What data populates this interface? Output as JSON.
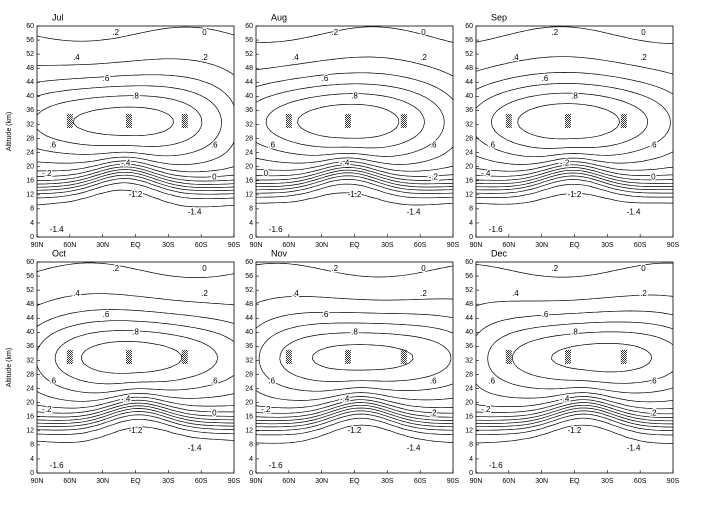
{
  "chart_data": [
    {
      "type": "contour",
      "title": "Jul",
      "ylabel": "Altitude (km)",
      "categories": [
        "90N",
        "60N",
        "30N",
        "EQ",
        "30S",
        "60S",
        "90S"
      ],
      "ylim": [
        0,
        60
      ],
      "yticks": [
        0,
        4,
        8,
        12,
        16,
        20,
        24,
        28,
        32,
        36,
        40,
        44,
        48,
        52,
        56,
        60
      ],
      "levels": [
        -1.6,
        -1.4,
        -1.2,
        -1,
        -0.8,
        -0.6,
        -0.4,
        -0.2,
        0,
        0.2,
        0.4,
        0.6,
        0.8
      ],
      "contour_labels": [
        ".2",
        "0",
        ".4",
        ".2",
        ".6",
        ".8",
        ".6",
        ".6",
        "-.4",
        "-.2",
        "0",
        "-1.2",
        "-1.4",
        "-1.4"
      ]
    },
    {
      "type": "contour",
      "title": "Aug",
      "categories": [
        "90N",
        "60N",
        "30N",
        "EQ",
        "30S",
        "60S",
        "90S"
      ],
      "ylim": [
        0,
        60
      ],
      "yticks": [
        0,
        4,
        8,
        12,
        16,
        20,
        24,
        28,
        32,
        36,
        40,
        44,
        48,
        52,
        56,
        60
      ],
      "levels": [
        -1.6,
        -1.4,
        -1.2,
        -1,
        -0.8,
        -0.6,
        -0.4,
        -0.2,
        0,
        0.2,
        0.4,
        0.6,
        0.8
      ],
      "contour_labels": [
        ".2",
        "0",
        ".4",
        ".2",
        ".6",
        ".8",
        ".6",
        ".6",
        "-.4",
        "0",
        "-.2",
        "-1.2",
        "-1.4",
        "-1.6"
      ]
    },
    {
      "type": "contour",
      "title": "Sep",
      "categories": [
        "90N",
        "60N",
        "30N",
        "EQ",
        "30S",
        "60S",
        "90S"
      ],
      "ylim": [
        0,
        60
      ],
      "yticks": [
        0,
        4,
        8,
        12,
        16,
        20,
        24,
        28,
        32,
        36,
        40,
        44,
        48,
        52,
        56,
        60
      ],
      "levels": [
        -1.6,
        -1.4,
        -1.2,
        -1,
        -0.8,
        -0.6,
        -0.4,
        -0.2,
        0,
        0.2,
        0.4,
        0.6,
        0.8
      ],
      "contour_labels": [
        ".2",
        "0",
        ".4",
        ".2",
        ".6",
        ".8",
        ".6",
        ".6",
        "-.2",
        "-.4",
        "0",
        "-1.2",
        "-1.4",
        "-1.6"
      ]
    },
    {
      "type": "contour",
      "title": "Oct",
      "ylabel": "Altitude (km)",
      "categories": [
        "90N",
        "60N",
        "30N",
        "EQ",
        "30S",
        "60S",
        "90S"
      ],
      "ylim": [
        0,
        60
      ],
      "yticks": [
        0,
        4,
        8,
        12,
        16,
        20,
        24,
        28,
        32,
        36,
        40,
        44,
        48,
        52,
        56,
        60
      ],
      "levels": [
        -1.6,
        -1.4,
        -1.2,
        -1,
        -0.8,
        -0.6,
        -0.4,
        -0.2,
        0,
        0.2,
        0.4,
        0.6,
        0.8
      ],
      "contour_labels": [
        ".2",
        "0",
        ".4",
        ".2",
        ".6",
        ".8",
        ".6",
        ".6",
        "-.4",
        "-.2",
        "0",
        "-1.2",
        "-1.4",
        "-1.6"
      ]
    },
    {
      "type": "contour",
      "title": "Nov",
      "categories": [
        "90N",
        "60N",
        "30N",
        "EQ",
        "30S",
        "60S",
        "90S"
      ],
      "ylim": [
        0,
        60
      ],
      "yticks": [
        0,
        4,
        8,
        12,
        16,
        20,
        24,
        28,
        32,
        36,
        40,
        44,
        48,
        52,
        56,
        60
      ],
      "levels": [
        -1.6,
        -1.4,
        -1.2,
        -1,
        -0.8,
        -0.6,
        -0.4,
        -0.2,
        0,
        0.2,
        0.4,
        0.6,
        0.8
      ],
      "contour_labels": [
        ".2",
        "0",
        ".4",
        ".2",
        ".6",
        ".8",
        ".6",
        ".6",
        "-.4",
        "-.2",
        ".2",
        "-1.2",
        "-1.4",
        "-1.6"
      ]
    },
    {
      "type": "contour",
      "title": "Dec",
      "categories": [
        "90N",
        "60N",
        "30N",
        "EQ",
        "30S",
        "60S",
        "90S"
      ],
      "ylim": [
        0,
        60
      ],
      "yticks": [
        0,
        4,
        8,
        12,
        16,
        20,
        24,
        28,
        32,
        36,
        40,
        44,
        48,
        52,
        56,
        60
      ],
      "levels": [
        -1.6,
        -1.4,
        -1.2,
        -1,
        -0.8,
        -0.6,
        -0.4,
        -0.2,
        0,
        0.2,
        0.4,
        0.6,
        0.8
      ],
      "contour_labels": [
        ".2",
        "0",
        ".4",
        ".2",
        ".6",
        ".8",
        ".6",
        ".6",
        "-.4",
        "-.2",
        ".2",
        "-1.2",
        "-1.4",
        "-1.6"
      ]
    }
  ]
}
